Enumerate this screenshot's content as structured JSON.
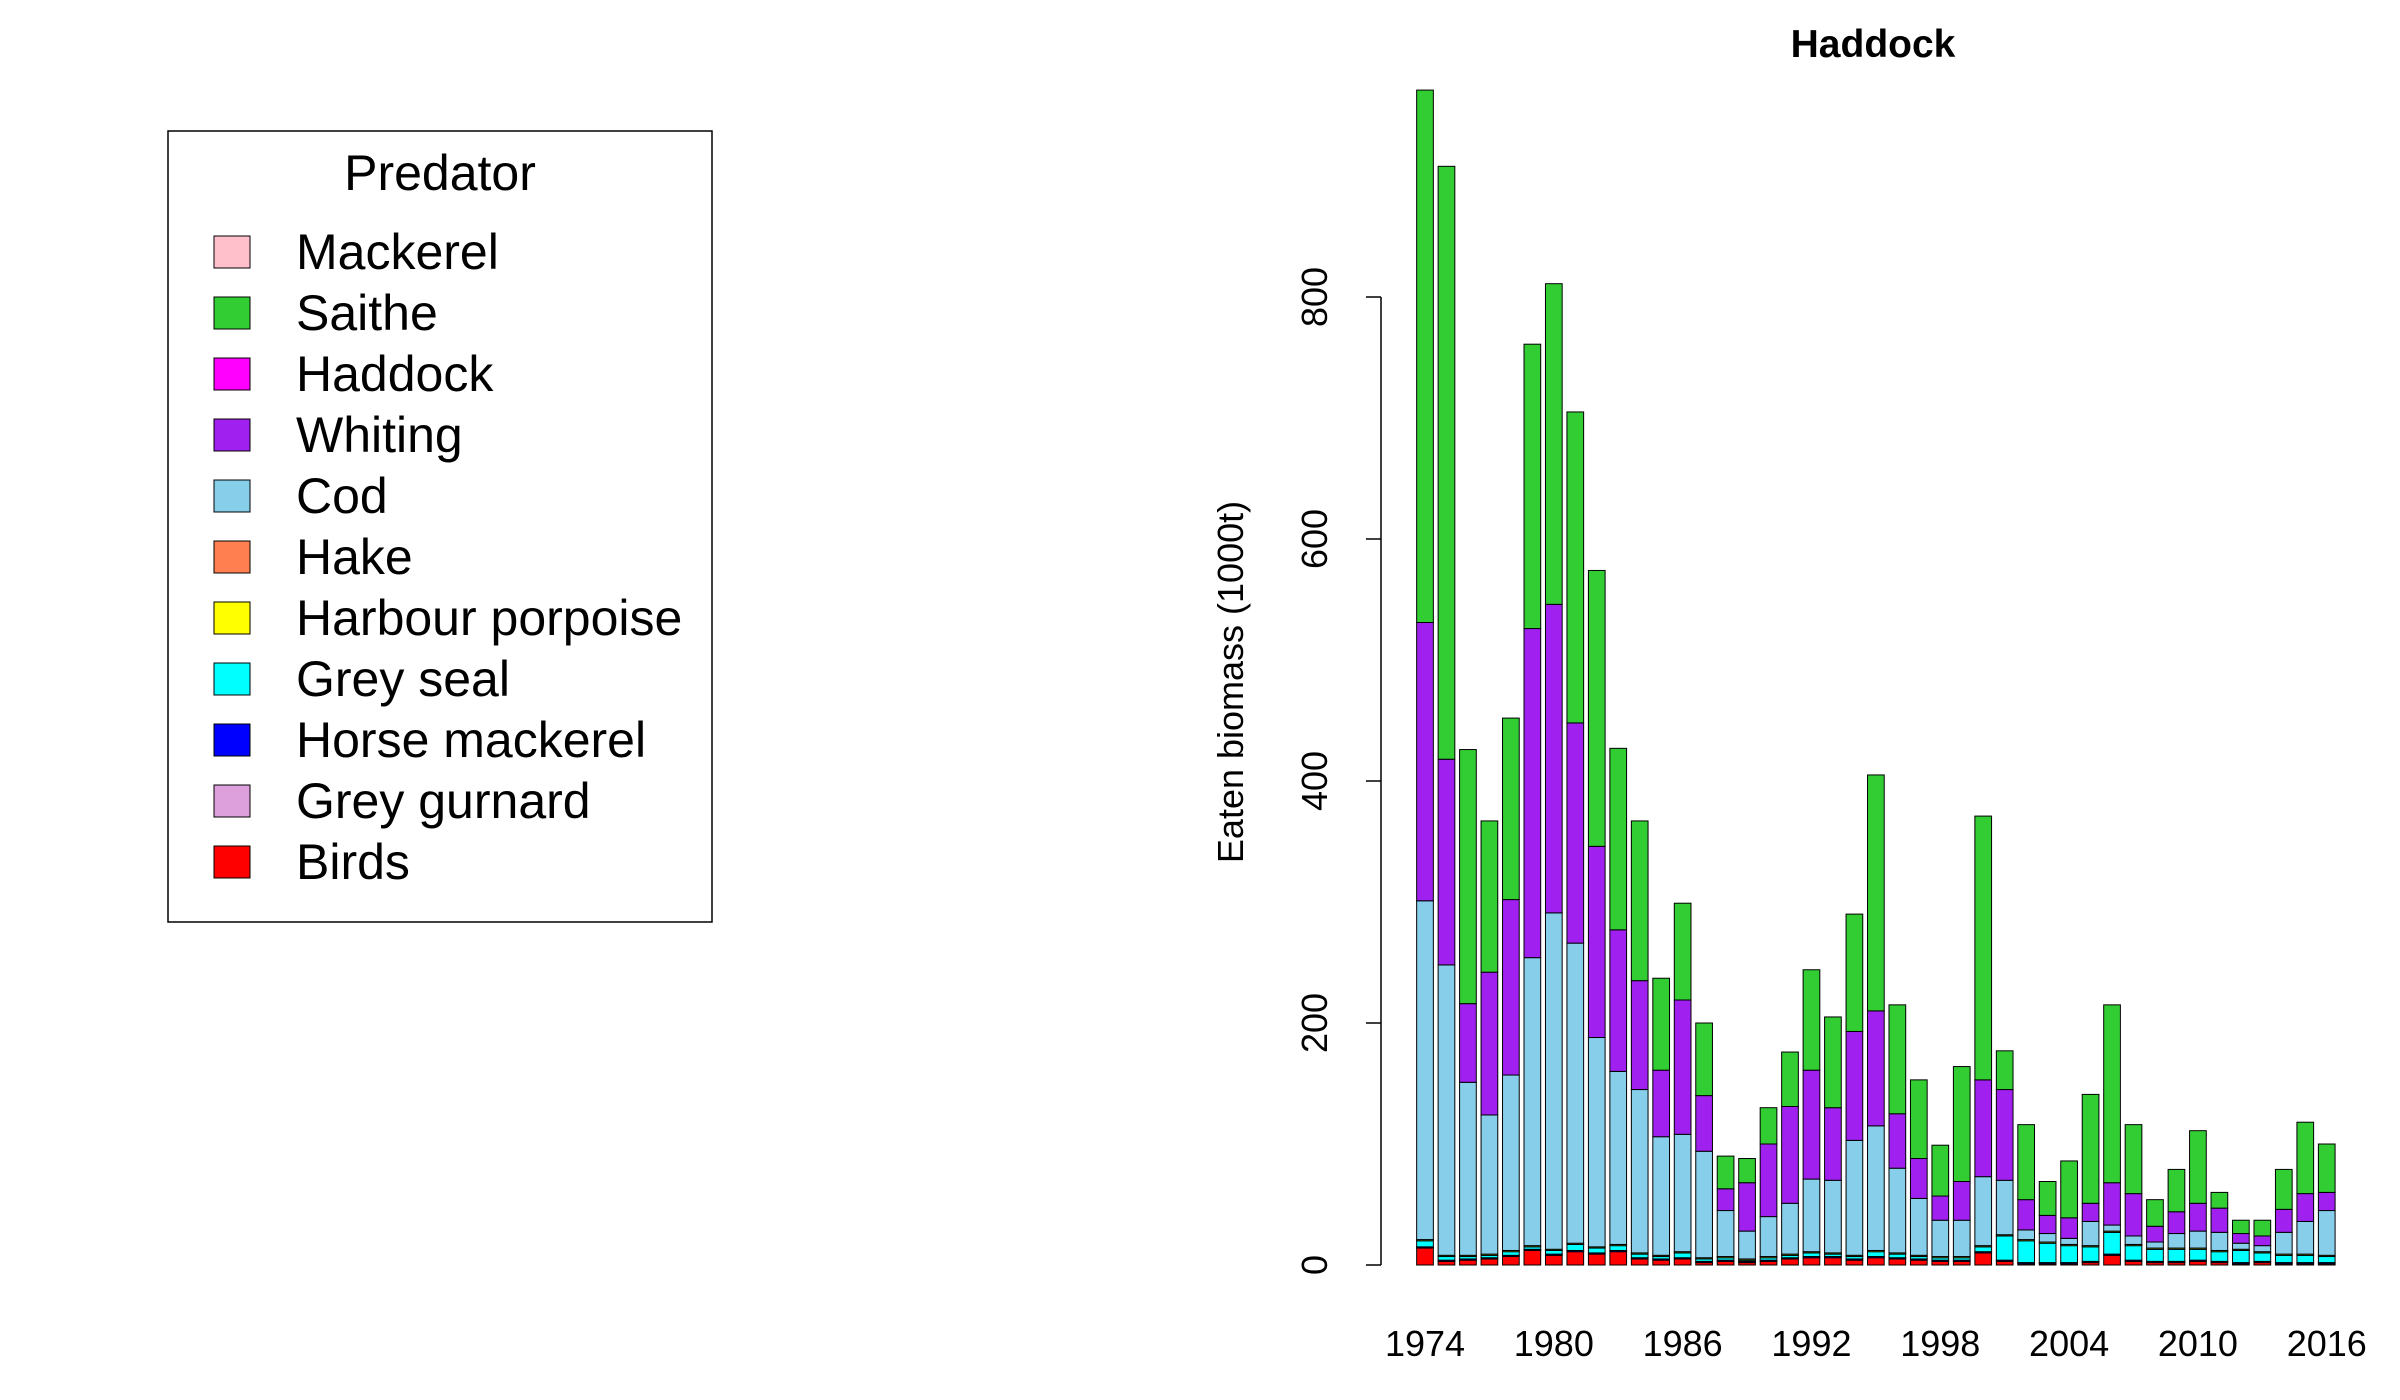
{
  "legend": {
    "title": "Predator",
    "entries": [
      {
        "name": "Mackerel",
        "color": "#FFC0CB"
      },
      {
        "name": "Saithe",
        "color": "#32CD32"
      },
      {
        "name": "Haddock",
        "color": "#FF00FF"
      },
      {
        "name": "Whiting",
        "color": "#A020F0"
      },
      {
        "name": "Cod",
        "color": "#87CEEB"
      },
      {
        "name": "Hake",
        "color": "#FF7F50"
      },
      {
        "name": "Harbour porpoise",
        "color": "#FFFF00"
      },
      {
        "name": "Grey seal",
        "color": "#00FFFF"
      },
      {
        "name": "Horse mackerel",
        "color": "#0000FF"
      },
      {
        "name": "Grey gurnard",
        "color": "#DDA0DD"
      },
      {
        "name": "Birds",
        "color": "#FF0000"
      }
    ]
  },
  "chart_data": {
    "type": "bar",
    "stacked": true,
    "title": "Haddock",
    "xlabel": "",
    "ylabel": "Eaten biomass (1000t)",
    "ylim": [
      0,
      980
    ],
    "yticks": [
      0,
      200,
      400,
      600,
      800
    ],
    "xticks": [
      "1974",
      "1980",
      "1986",
      "1992",
      "1998",
      "2004",
      "2010",
      "2016"
    ],
    "grid": false,
    "legend_position": "left",
    "categories": [
      "1974",
      "1975",
      "1976",
      "1977",
      "1978",
      "1979",
      "1980",
      "1981",
      "1982",
      "1983",
      "1984",
      "1985",
      "1986",
      "1987",
      "1988",
      "1989",
      "1990",
      "1991",
      "1992",
      "1993",
      "1994",
      "1995",
      "1996",
      "1997",
      "1998",
      "1999",
      "2000",
      "2001",
      "2002",
      "2003",
      "2004",
      "2005",
      "2006",
      "2007",
      "2008",
      "2009",
      "2010",
      "2011",
      "2012",
      "2013",
      "2014",
      "2015",
      "2016"
    ],
    "series": [
      {
        "name": "Birds",
        "color": "#FF0000",
        "values": [
          14,
          3,
          4,
          5,
          7,
          12,
          8,
          11,
          9,
          11,
          5,
          4,
          5,
          2,
          3,
          2,
          3,
          5,
          6,
          6,
          4,
          6,
          5,
          4,
          3,
          3,
          10,
          3,
          1,
          1,
          1,
          2,
          8,
          3,
          2,
          2,
          3,
          2,
          1,
          2,
          1,
          1,
          1
        ]
      },
      {
        "name": "Grey gurnard",
        "color": "#DDA0DD",
        "values": [
          0,
          0,
          0,
          0,
          0,
          0,
          0,
          0,
          0,
          0,
          0,
          0,
          0,
          0,
          0,
          0,
          0,
          0,
          0,
          0,
          0,
          0,
          0,
          0,
          0,
          0,
          0,
          0,
          0,
          0,
          0,
          0,
          0,
          0,
          0,
          0,
          0,
          0,
          0,
          0,
          0,
          0,
          0
        ]
      },
      {
        "name": "Horse mackerel",
        "color": "#0000FF",
        "values": [
          1,
          1,
          1,
          1,
          1,
          1,
          1,
          1,
          1,
          1,
          1,
          1,
          1,
          1,
          1,
          1,
          1,
          1,
          1,
          1,
          1,
          1,
          1,
          1,
          1,
          1,
          1,
          1,
          1,
          1,
          1,
          1,
          1,
          1,
          1,
          1,
          1,
          1,
          1,
          1,
          1,
          1,
          1
        ]
      },
      {
        "name": "Grey seal",
        "color": "#00FFFF",
        "values": [
          5,
          3,
          2,
          2,
          3,
          2,
          3,
          5,
          4,
          4,
          3,
          2,
          4,
          2,
          2,
          1,
          2,
          2,
          3,
          2,
          2,
          4,
          3,
          2,
          2,
          2,
          4,
          20,
          18,
          16,
          14,
          12,
          18,
          12,
          10,
          10,
          9,
          8,
          10,
          7,
          6,
          6,
          5
        ]
      },
      {
        "name": "Harbour porpoise",
        "color": "#FFFF00",
        "values": [
          1,
          1,
          1,
          1,
          1,
          1,
          1,
          1,
          1,
          1,
          1,
          1,
          1,
          1,
          1,
          1,
          1,
          1,
          1,
          1,
          1,
          1,
          1,
          1,
          1,
          1,
          1,
          1,
          1,
          1,
          1,
          1,
          1,
          1,
          1,
          1,
          1,
          1,
          1,
          1,
          1,
          1,
          1
        ]
      },
      {
        "name": "Hake",
        "color": "#FF7F50",
        "values": [
          0,
          0,
          0,
          0,
          0,
          0,
          0,
          0,
          0,
          0,
          0,
          0,
          0,
          0,
          0,
          0,
          0,
          0,
          0,
          0,
          0,
          0,
          0,
          0,
          0,
          0,
          0,
          0,
          0,
          0,
          0,
          0,
          0,
          0,
          0,
          0,
          0,
          0,
          0,
          0,
          0,
          0,
          0
        ]
      },
      {
        "name": "Cod",
        "color": "#87CEEB",
        "values": [
          280,
          240,
          143,
          115,
          145,
          238,
          278,
          248,
          173,
          143,
          135,
          98,
          97,
          88,
          38,
          23,
          33,
          42,
          60,
          60,
          95,
          103,
          70,
          47,
          30,
          30,
          57,
          45,
          8,
          7,
          5,
          20,
          5,
          7,
          5,
          12,
          14,
          15,
          5,
          5,
          18,
          27,
          37
        ]
      },
      {
        "name": "Whiting",
        "color": "#A020F0",
        "values": [
          230,
          170,
          65,
          118,
          145,
          272,
          255,
          182,
          158,
          117,
          90,
          55,
          111,
          46,
          18,
          40,
          60,
          80,
          90,
          60,
          90,
          95,
          45,
          33,
          20,
          32,
          80,
          75,
          25,
          15,
          17,
          15,
          35,
          35,
          13,
          18,
          23,
          20,
          8,
          8,
          19,
          23,
          15
        ]
      },
      {
        "name": "Haddock",
        "color": "#FF00FF",
        "values": [
          0,
          0,
          0,
          0,
          0,
          0,
          0,
          0,
          0,
          0,
          0,
          0,
          0,
          0,
          0,
          0,
          0,
          0,
          0,
          0,
          0,
          0,
          0,
          0,
          0,
          0,
          0,
          0,
          0,
          0,
          0,
          0,
          0,
          0,
          0,
          0,
          0,
          0,
          0,
          0,
          0,
          0,
          0
        ]
      },
      {
        "name": "Saithe",
        "color": "#32CD32",
        "values": [
          440,
          490,
          210,
          125,
          150,
          235,
          265,
          257,
          228,
          150,
          132,
          76,
          80,
          60,
          27,
          20,
          30,
          45,
          83,
          75,
          97,
          195,
          90,
          65,
          42,
          95,
          218,
          32,
          62,
          28,
          47,
          90,
          147,
          57,
          22,
          35,
          60,
          13,
          11,
          13,
          33,
          59,
          40
        ]
      },
      {
        "name": "Mackerel",
        "color": "#FFC0CB",
        "values": [
          0,
          0,
          0,
          0,
          0,
          0,
          0,
          0,
          0,
          0,
          0,
          0,
          0,
          0,
          0,
          0,
          0,
          0,
          0,
          0,
          0,
          0,
          0,
          0,
          0,
          0,
          0,
          0,
          0,
          0,
          0,
          0,
          0,
          0,
          0,
          0,
          0,
          0,
          0,
          0,
          0,
          0,
          0
        ]
      }
    ]
  }
}
